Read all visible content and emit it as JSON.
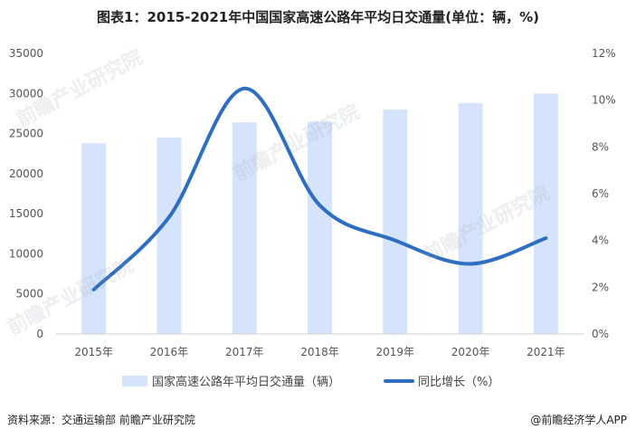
{
  "title": "图表1：2015-2021年中国国家高速公路年平均日交通量(单位：辆，%)",
  "footer": {
    "source": "资料来源：交通运输部 前瞻产业研究院",
    "brand": "@前瞻经济学人APP"
  },
  "watermark": "前瞻产业研究院",
  "chart_data": {
    "type": "bar",
    "categories": [
      "2015年",
      "2016年",
      "2017年",
      "2018年",
      "2019年",
      "2020年",
      "2021年"
    ],
    "series": [
      {
        "name": "国家高速公路年平均日交通量（辆）",
        "type": "bar",
        "axis": "left",
        "color": "#d6e4fb",
        "values": [
          23800,
          24500,
          26400,
          26500,
          28000,
          28800,
          30000
        ]
      },
      {
        "name": "同比增长（%）",
        "type": "line",
        "axis": "right",
        "color": "#2e6ec0",
        "values": [
          1.9,
          5.0,
          10.5,
          5.5,
          4.0,
          3.0,
          4.1
        ]
      }
    ],
    "y_left": {
      "min": 0,
      "max": 35000,
      "ticks": [
        "0",
        "5000",
        "10000",
        "15000",
        "20000",
        "25000",
        "30000",
        "35000"
      ]
    },
    "y_right": {
      "min": 0,
      "max": 12,
      "ticks": [
        "0%",
        "2%",
        "4%",
        "6%",
        "8%",
        "10%",
        "12%"
      ]
    },
    "grid": false,
    "legend": "bottom"
  }
}
